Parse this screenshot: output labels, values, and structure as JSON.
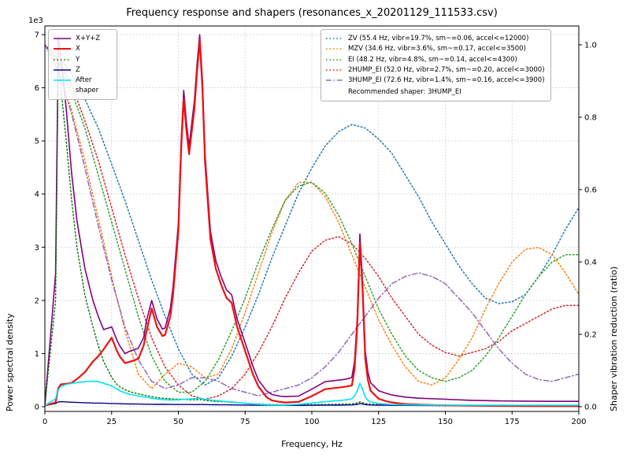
{
  "chart_data": {
    "type": "line",
    "title": "Frequency response and shapers (resonances_x_20201129_111533.csv)",
    "xlabel": "Frequency, Hz",
    "ylabel": "Power spectral density",
    "y2label": "Shaper vibration reduction (ratio)",
    "xlim": [
      0,
      200
    ],
    "ylim_left": [
      0,
      7000
    ],
    "ylim_right": [
      0,
      1.0
    ],
    "x_ticks": [
      0,
      25,
      50,
      75,
      100,
      125,
      150,
      175,
      200
    ],
    "y_ticks_left": [
      0,
      1,
      2,
      3,
      4,
      5,
      6,
      7
    ],
    "y_left_scale": "1e3",
    "y_ticks_right": [
      0.0,
      0.2,
      0.4,
      0.6,
      0.8,
      1.0
    ],
    "grid": true,
    "legend_note": "Recommended shaper: 3HUMP_EI",
    "psd_x": [
      0,
      4,
      5,
      6,
      8,
      10,
      12,
      15,
      18,
      20,
      22,
      25,
      27,
      28,
      30,
      32,
      35,
      37,
      38,
      40,
      42,
      44,
      45,
      47,
      48,
      50,
      51,
      52,
      53,
      54,
      56,
      57,
      58,
      59,
      60,
      62,
      64,
      66,
      68,
      70,
      72,
      75,
      78,
      80,
      83,
      85,
      88,
      90,
      95,
      100,
      105,
      110,
      113,
      115,
      116,
      117,
      118,
      119,
      120,
      121,
      122,
      125,
      128,
      130,
      135,
      140,
      150,
      160,
      170,
      180,
      190,
      200
    ],
    "psd_series": [
      {
        "name": "X+Y+Z",
        "color": "#800080",
        "style": "solid",
        "width": 1.6,
        "values": [
          30,
          2500,
          6950,
          6600,
          5600,
          4400,
          3500,
          2600,
          2000,
          1700,
          1450,
          1500,
          1250,
          1150,
          1000,
          1050,
          1100,
          1300,
          1600,
          2000,
          1650,
          1460,
          1480,
          1850,
          2250,
          3450,
          4950,
          5950,
          5350,
          4900,
          5750,
          6450,
          7000,
          6150,
          4750,
          3300,
          2750,
          2450,
          2200,
          2100,
          1650,
          1200,
          750,
          500,
          300,
          230,
          200,
          190,
          200,
          330,
          470,
          500,
          520,
          550,
          850,
          1650,
          3250,
          2350,
          1050,
          650,
          450,
          300,
          250,
          220,
          180,
          160,
          140,
          120,
          110,
          105,
          100,
          100
        ]
      },
      {
        "name": "Y",
        "color": "#007000",
        "style": "dotted",
        "width": 1.4,
        "values": [
          30,
          2000,
          6500,
          6000,
          5000,
          3900,
          3000,
          2100,
          1500,
          1150,
          850,
          550,
          420,
          380,
          320,
          280,
          240,
          220,
          210,
          190,
          170,
          160,
          155,
          150,
          145,
          140,
          140,
          140,
          135,
          130,
          130,
          130,
          135,
          130,
          120,
          110,
          100,
          95,
          90,
          85,
          75,
          65,
          55,
          50,
          45,
          40,
          38,
          36,
          35,
          38,
          42,
          46,
          50,
          55,
          60,
          70,
          90,
          75,
          60,
          52,
          48,
          42,
          38,
          36,
          32,
          30,
          26,
          24,
          22,
          20,
          20,
          20
        ]
      },
      {
        "name": "Z",
        "color": "#00008b",
        "style": "solid",
        "width": 1.4,
        "values": [
          20,
          60,
          90,
          95,
          90,
          85,
          80,
          75,
          70,
          68,
          65,
          60,
          58,
          56,
          54,
          52,
          50,
          48,
          48,
          46,
          45,
          44,
          44,
          43,
          42,
          42,
          42,
          42,
          41,
          41,
          40,
          40,
          42,
          41,
          40,
          38,
          37,
          36,
          35,
          34,
          33,
          31,
          30,
          29,
          28,
          27,
          26,
          26,
          25,
          26,
          28,
          30,
          32,
          34,
          38,
          45,
          60,
          50,
          40,
          36,
          33,
          30,
          28,
          27,
          25,
          24,
          22,
          21,
          20,
          20,
          20,
          20
        ]
      },
      {
        "name": "X",
        "color": "#ee1111",
        "style": "solid",
        "width": 2.2,
        "values": [
          20,
          80,
          350,
          420,
          430,
          450,
          520,
          650,
          850,
          950,
          1080,
          1300,
          1050,
          950,
          820,
          850,
          900,
          1150,
          1400,
          1850,
          1500,
          1330,
          1350,
          1700,
          2100,
          3300,
          4800,
          5800,
          5200,
          4750,
          5600,
          6300,
          6900,
          6000,
          4600,
          3150,
          2600,
          2300,
          2050,
          1950,
          1500,
          1050,
          600,
          380,
          180,
          120,
          90,
          80,
          90,
          200,
          330,
          360,
          380,
          400,
          700,
          1500,
          3080,
          2200,
          900,
          500,
          300,
          150,
          100,
          80,
          50,
          40,
          25,
          20,
          15,
          12,
          10,
          10
        ]
      },
      {
        "name": "After shaper",
        "color": "#00e5ee",
        "style": "solid",
        "width": 1.6,
        "values": [
          20,
          150,
          320,
          380,
          420,
          440,
          455,
          470,
          480,
          470,
          440,
          390,
          330,
          300,
          260,
          230,
          200,
          185,
          180,
          160,
          145,
          135,
          132,
          128,
          126,
          130,
          135,
          140,
          142,
          145,
          150,
          155,
          160,
          150,
          140,
          125,
          115,
          105,
          95,
          90,
          78,
          65,
          52,
          45,
          38,
          33,
          32,
          33,
          45,
          70,
          95,
          115,
          130,
          150,
          200,
          300,
          440,
          330,
          180,
          120,
          90,
          60,
          48,
          42,
          36,
          32,
          30,
          28,
          28,
          28,
          28,
          28
        ]
      }
    ],
    "legend_order": [
      "X+Y+Z",
      "X",
      "Y",
      "Z",
      "After shaper"
    ],
    "shaper_x": [
      0,
      5,
      10,
      15,
      20,
      25,
      30,
      35,
      40,
      45,
      50,
      55,
      60,
      65,
      70,
      75,
      80,
      85,
      90,
      95,
      100,
      105,
      110,
      115,
      120,
      125,
      130,
      135,
      140,
      145,
      150,
      155,
      160,
      165,
      170,
      175,
      180,
      185,
      190,
      195,
      200
    ],
    "shaper_series": [
      {
        "name": "ZV",
        "label": "ZV (55.4 Hz, vibr=19.7%, sm~=0.06, accel<=12000)",
        "color": "#1f77b4",
        "style": "dotted",
        "width": 1.5,
        "values": [
          1.0,
          0.97,
          0.92,
          0.85,
          0.77,
          0.67,
          0.57,
          0.46,
          0.35,
          0.25,
          0.16,
          0.09,
          0.06,
          0.08,
          0.14,
          0.22,
          0.31,
          0.41,
          0.5,
          0.59,
          0.66,
          0.72,
          0.76,
          0.78,
          0.77,
          0.74,
          0.7,
          0.64,
          0.58,
          0.51,
          0.45,
          0.39,
          0.34,
          0.3,
          0.285,
          0.29,
          0.31,
          0.36,
          0.42,
          0.49,
          0.55
        ]
      },
      {
        "name": "MZV",
        "label": "MZV (34.6 Hz, vibr=3.6%, sm~=0.17, accel<=3500)",
        "color": "#ff7f0e",
        "style": "dotted",
        "width": 1.5,
        "values": [
          1.0,
          0.93,
          0.82,
          0.68,
          0.52,
          0.36,
          0.21,
          0.09,
          0.05,
          0.09,
          0.12,
          0.11,
          0.08,
          0.09,
          0.16,
          0.26,
          0.37,
          0.48,
          0.57,
          0.62,
          0.62,
          0.58,
          0.51,
          0.42,
          0.33,
          0.24,
          0.17,
          0.11,
          0.07,
          0.06,
          0.08,
          0.13,
          0.19,
          0.27,
          0.34,
          0.4,
          0.435,
          0.44,
          0.42,
          0.37,
          0.31
        ]
      },
      {
        "name": "EI",
        "label": "EI (48.2 Hz, vibr=4.8%, sm~=0.14, accel<=4300)",
        "color": "#2ca02c",
        "style": "dotted",
        "width": 1.5,
        "values": [
          1.0,
          0.95,
          0.87,
          0.77,
          0.64,
          0.51,
          0.38,
          0.25,
          0.14,
          0.07,
          0.04,
          0.04,
          0.07,
          0.13,
          0.21,
          0.3,
          0.4,
          0.49,
          0.57,
          0.61,
          0.62,
          0.59,
          0.53,
          0.45,
          0.36,
          0.27,
          0.2,
          0.14,
          0.1,
          0.08,
          0.07,
          0.08,
          0.1,
          0.14,
          0.19,
          0.25,
          0.31,
          0.36,
          0.4,
          0.42,
          0.42
        ]
      },
      {
        "name": "2HUMP_EI",
        "label": "2HUMP_EI (52.0 Hz, vibr=2.7%, sm~=0.20, accel<=3000)",
        "color": "#d62728",
        "style": "dotted",
        "width": 1.5,
        "values": [
          1.0,
          0.96,
          0.89,
          0.79,
          0.68,
          0.55,
          0.42,
          0.3,
          0.19,
          0.11,
          0.06,
          0.03,
          0.02,
          0.03,
          0.05,
          0.09,
          0.15,
          0.22,
          0.3,
          0.37,
          0.43,
          0.46,
          0.47,
          0.45,
          0.41,
          0.36,
          0.3,
          0.25,
          0.2,
          0.17,
          0.15,
          0.14,
          0.15,
          0.16,
          0.18,
          0.21,
          0.23,
          0.25,
          0.27,
          0.28,
          0.28
        ]
      },
      {
        "name": "3HUMP_EI",
        "label": "3HUMP_EI (72.6 Hz, vibr=1.4%, sm~=0.16, accel<=3900)",
        "color": "#9467bd",
        "style": "dashdot",
        "width": 1.5,
        "values": [
          1.0,
          0.93,
          0.81,
          0.66,
          0.5,
          0.35,
          0.22,
          0.13,
          0.07,
          0.05,
          0.06,
          0.08,
          0.08,
          0.07,
          0.05,
          0.04,
          0.03,
          0.04,
          0.05,
          0.06,
          0.08,
          0.11,
          0.15,
          0.2,
          0.25,
          0.3,
          0.34,
          0.36,
          0.37,
          0.36,
          0.34,
          0.3,
          0.26,
          0.21,
          0.16,
          0.12,
          0.09,
          0.075,
          0.07,
          0.08,
          0.09
        ]
      }
    ]
  }
}
